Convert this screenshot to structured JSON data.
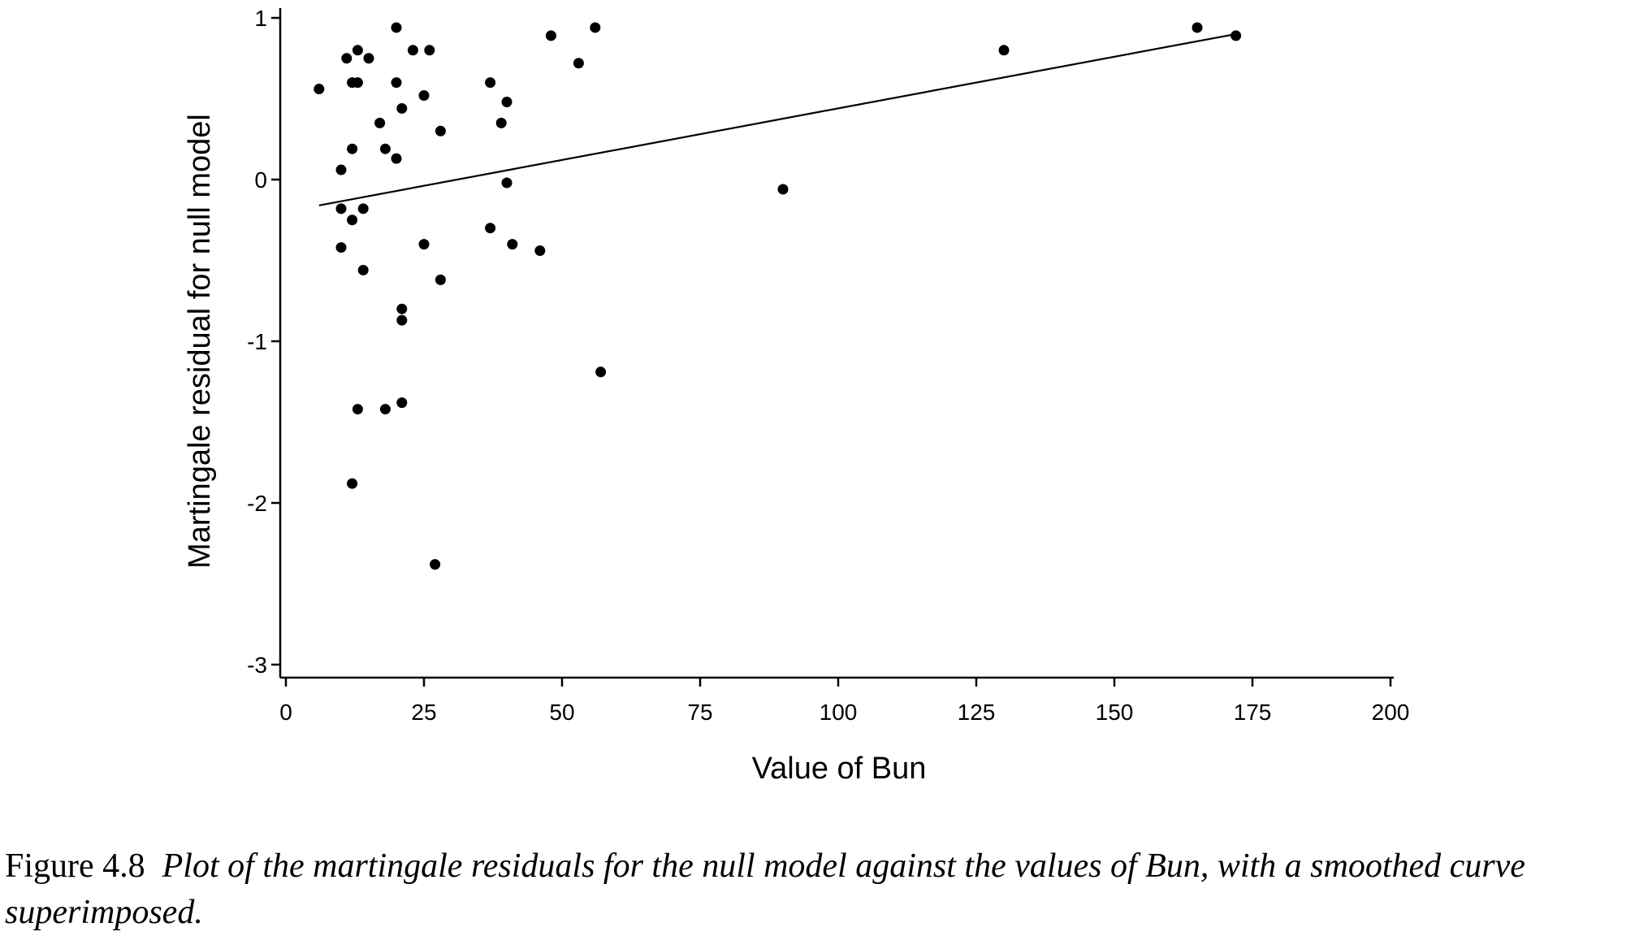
{
  "chart_data": {
    "type": "scatter",
    "xlabel": "Value of Bun",
    "ylabel": "Martingale residual for null model",
    "xlim": [
      0,
      200
    ],
    "ylim": [
      -3,
      1
    ],
    "xticks": [
      0,
      25,
      50,
      75,
      100,
      125,
      150,
      175,
      200
    ],
    "yticks": [
      -3,
      -2,
      -1,
      0,
      1
    ],
    "grid": false,
    "series": [
      {
        "type": "scatter",
        "points": [
          [
            6,
            0.56
          ],
          [
            10,
            0.06
          ],
          [
            10,
            -0.18
          ],
          [
            10,
            -0.42
          ],
          [
            11,
            0.75
          ],
          [
            12,
            0.6
          ],
          [
            12,
            0.19
          ],
          [
            12,
            -0.25
          ],
          [
            12,
            -1.88
          ],
          [
            13,
            0.8
          ],
          [
            13,
            0.6
          ],
          [
            13,
            -1.42
          ],
          [
            14,
            -0.18
          ],
          [
            14,
            -0.56
          ],
          [
            15,
            0.75
          ],
          [
            17,
            0.35
          ],
          [
            18,
            0.19
          ],
          [
            18,
            -1.42
          ],
          [
            20,
            0.94
          ],
          [
            20,
            0.6
          ],
          [
            20,
            0.13
          ],
          [
            21,
            0.44
          ],
          [
            21,
            -0.8
          ],
          [
            21,
            -0.87
          ],
          [
            21,
            -1.38
          ],
          [
            23,
            0.8
          ],
          [
            25,
            0.52
          ],
          [
            25,
            -0.4
          ],
          [
            26,
            0.8
          ],
          [
            27,
            -2.38
          ],
          [
            28,
            0.3
          ],
          [
            28,
            -0.62
          ],
          [
            37,
            0.6
          ],
          [
            37,
            -0.3
          ],
          [
            39,
            0.35
          ],
          [
            40,
            0.48
          ],
          [
            40,
            -0.02
          ],
          [
            41,
            -0.4
          ],
          [
            46,
            -0.44
          ],
          [
            48,
            0.89
          ],
          [
            53,
            0.72
          ],
          [
            56,
            0.94
          ],
          [
            57,
            -1.19
          ],
          [
            90,
            -0.06
          ],
          [
            130,
            0.8
          ],
          [
            165,
            0.94
          ],
          [
            172,
            0.89
          ]
        ]
      },
      {
        "type": "line",
        "points": [
          [
            6,
            -0.16
          ],
          [
            172,
            0.9
          ]
        ]
      }
    ]
  },
  "caption": {
    "number": "Figure 4.8",
    "text": "Plot of the martingale residuals for the null model against the values of Bun, with a smoothed curve superimposed."
  }
}
